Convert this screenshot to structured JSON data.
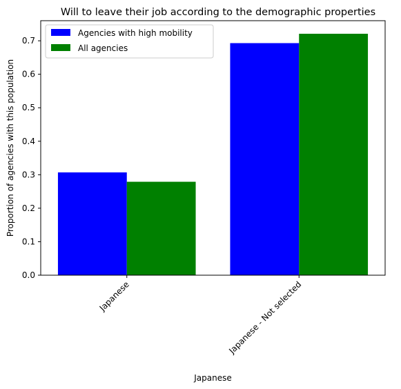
{
  "chart_data": {
    "type": "bar",
    "title": "Will to leave their job according to the demographic properties",
    "xlabel": "Japanese",
    "ylabel": "Proportion of agencies with this population",
    "categories": [
      "Japanese",
      "Japanese - Not selected"
    ],
    "series": [
      {
        "name": "Agencies with high mobility",
        "color": "#0000ff",
        "values": [
          0.307,
          0.693
        ]
      },
      {
        "name": "All agencies",
        "color": "#008000",
        "values": [
          0.279,
          0.721
        ]
      }
    ],
    "ylim": [
      0,
      0.76
    ],
    "yticks": [
      0.0,
      0.1,
      0.2,
      0.3,
      0.4,
      0.5,
      0.6,
      0.7
    ],
    "ytick_labels": [
      "0.0",
      "0.1",
      "0.2",
      "0.3",
      "0.4",
      "0.5",
      "0.6",
      "0.7"
    ],
    "grid": false,
    "legend_position": "top-left"
  }
}
